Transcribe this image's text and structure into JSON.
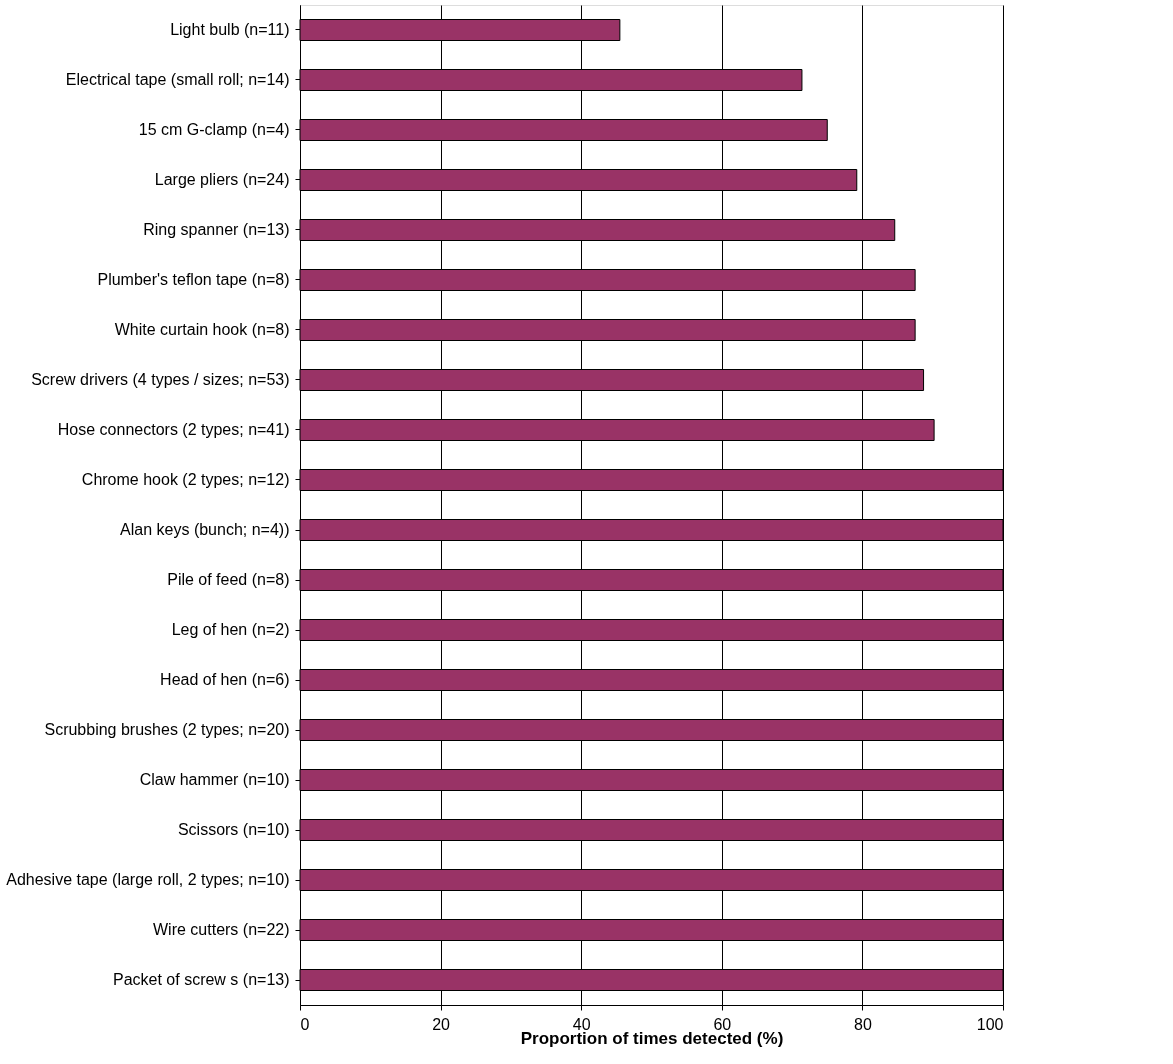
{
  "chart_data": {
    "type": "bar",
    "orientation": "horizontal",
    "categories": [
      "Light bulb (n=11)",
      "Electrical tape (small roll; n=14)",
      "15 cm G-clamp (n=4)",
      "Large pliers (n=24)",
      "Ring spanner (n=13)",
      "Plumber's teflon tape (n=8)",
      "White curtain hook (n=8)",
      "Screw drivers (4 types / sizes; n=53)",
      "Hose connectors (2 types; n=41)",
      "Chrome hook (2 types; n=12)",
      "Alan keys (bunch; n=4))",
      "Pile of feed (n=8)",
      "Leg of hen (n=2)",
      "Head of hen (n=6)",
      "Scrubbing brushes (2 types; n=20)",
      "Claw  hammer (n=10)",
      "Scissors (n=10)",
      "Adhesive tape (large roll, 2 types; n=10)",
      "Wire cutters (n=22)",
      "Packet of screw s (n=13)"
    ],
    "values": [
      45.5,
      71.4,
      75,
      79.2,
      84.6,
      87.5,
      87.5,
      88.7,
      90.2,
      100,
      100,
      100,
      100,
      100,
      100,
      100,
      100,
      100,
      100,
      100
    ],
    "color": "#993366",
    "xlim": [
      0,
      100
    ],
    "xticks": [
      0,
      20,
      40,
      60,
      80,
      100
    ],
    "xlabel": "Proportion of times detected (%)",
    "grid": "x"
  }
}
